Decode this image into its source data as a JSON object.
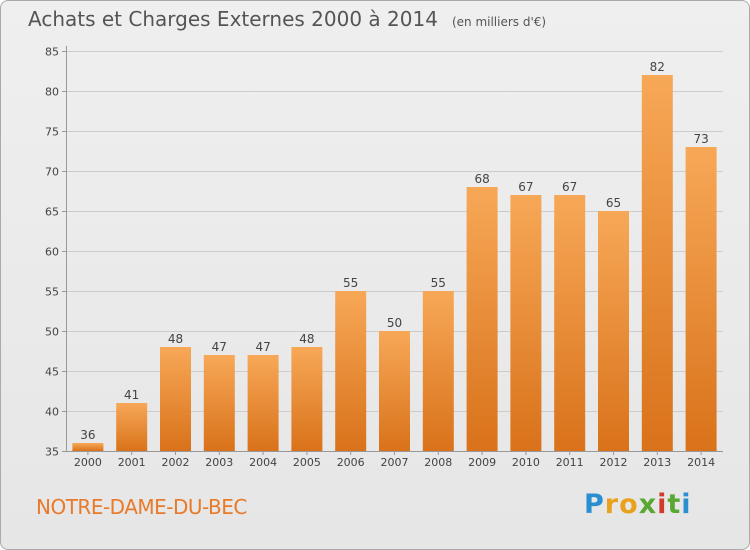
{
  "title": "Achats et Charges Externes 2000 à 2014",
  "unit": "(en milliers d'€)",
  "commune": "NOTRE-DAME-DU-BEC",
  "logo": {
    "letters": [
      "P",
      "r",
      "o",
      "x",
      "i",
      "t",
      "i"
    ],
    "colors": [
      "#2a8fd1",
      "#e8a21c",
      "#e8a21c",
      "#5aa832",
      "#d23a2a",
      "#5aa832",
      "#2a8fd1"
    ]
  },
  "colors": {
    "bar_light": "#f7a857",
    "bar_dark": "#d9721a",
    "grid": "#cccccc",
    "axis": "#999999",
    "text": "#444444"
  },
  "chart_data": {
    "type": "bar",
    "title": "Achats et Charges Externes 2000 à 2014",
    "xlabel": "",
    "ylabel": "",
    "categories": [
      "2000",
      "2001",
      "2002",
      "2003",
      "2004",
      "2005",
      "2006",
      "2007",
      "2008",
      "2009",
      "2010",
      "2011",
      "2012",
      "2013",
      "2014"
    ],
    "values": [
      36,
      41,
      48,
      47,
      47,
      48,
      55,
      50,
      55,
      68,
      67,
      67,
      65,
      82,
      73
    ],
    "ylim": [
      35,
      85
    ],
    "yticks": [
      35,
      40,
      45,
      50,
      55,
      60,
      65,
      70,
      75,
      80,
      85
    ],
    "grid": true,
    "data_labels": true
  }
}
